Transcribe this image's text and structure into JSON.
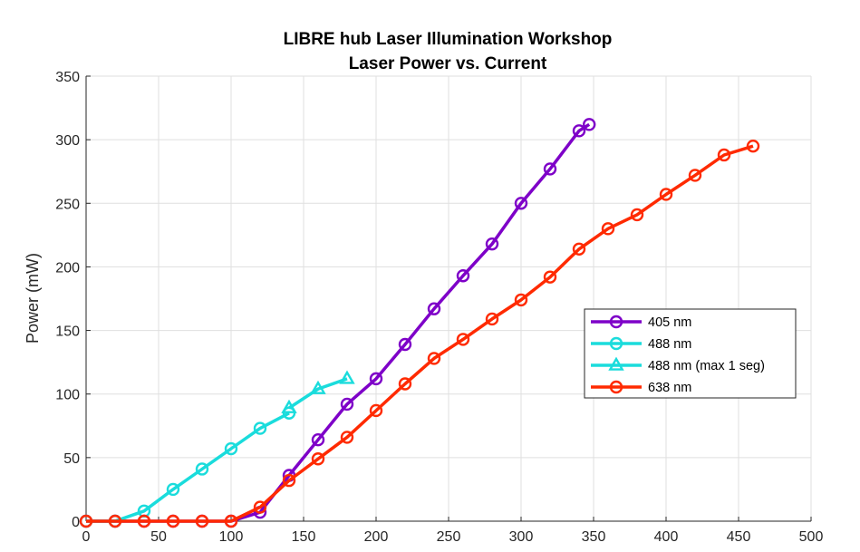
{
  "chart_data": {
    "type": "line",
    "title": "LIBRE hub Laser Illumination Workshop",
    "subtitle": "Laser Power vs. Current",
    "xlabel": "",
    "ylabel": "Power (mW)",
    "xlim": [
      0,
      500
    ],
    "ylim": [
      0,
      350
    ],
    "xticks": [
      0,
      50,
      100,
      150,
      200,
      250,
      300,
      350,
      400,
      450,
      500
    ],
    "yticks": [
      0,
      50,
      100,
      150,
      200,
      250,
      300,
      350
    ],
    "grid": true,
    "legend_position": "right",
    "series": [
      {
        "name": "405 nm",
        "color": "#7E00C8",
        "marker": "circle",
        "x": [
          0,
          20,
          40,
          60,
          80,
          100,
          120,
          140,
          160,
          180,
          200,
          220,
          240,
          260,
          280,
          300,
          320,
          340,
          347
        ],
        "y": [
          0,
          0,
          0,
          0,
          0,
          0,
          7,
          36,
          64,
          92,
          112,
          139,
          167,
          193,
          218,
          250,
          277,
          307,
          312
        ]
      },
      {
        "name": "488 nm",
        "color": "#1ADCDC",
        "marker": "circle",
        "x": [
          0,
          20,
          40,
          60,
          80,
          100,
          120,
          140
        ],
        "y": [
          0,
          0,
          8,
          25,
          41,
          57,
          73,
          85
        ]
      },
      {
        "name": "488 nm (max 1 seg)",
        "color": "#1ADCDC",
        "marker": "triangle",
        "x": [
          140,
          160,
          180
        ],
        "y": [
          89,
          104,
          112
        ]
      },
      {
        "name": "638 nm",
        "color": "#FF2A00",
        "marker": "circle",
        "x": [
          0,
          20,
          40,
          60,
          80,
          100,
          120,
          140,
          160,
          180,
          200,
          220,
          240,
          260,
          280,
          300,
          320,
          340,
          360,
          380,
          400,
          420,
          440,
          460
        ],
        "y": [
          0,
          0,
          0,
          0,
          0,
          0,
          11,
          32,
          49,
          66,
          87,
          108,
          128,
          143,
          159,
          174,
          192,
          214,
          230,
          241,
          257,
          272,
          288,
          295
        ]
      }
    ]
  }
}
